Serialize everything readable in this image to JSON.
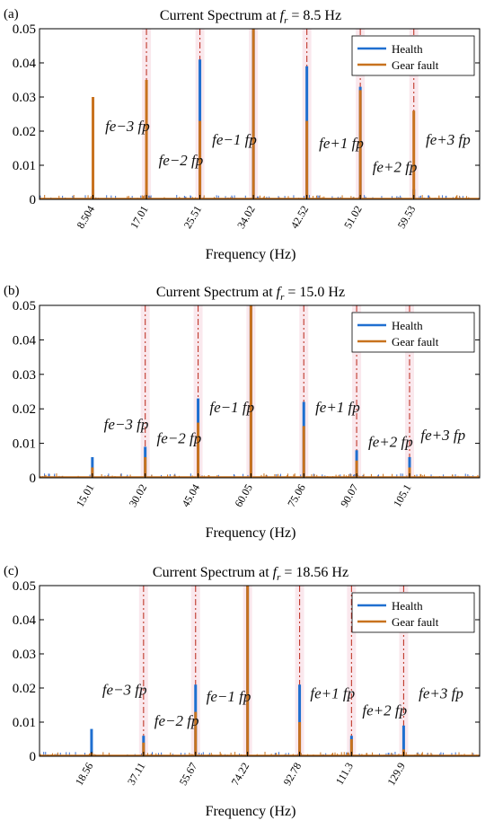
{
  "chart_data": [
    {
      "type": "line",
      "panel_label": "(a)",
      "title_prefix": "Current Spectrum at ",
      "title_var": "f",
      "title_sub": "r",
      "title_suffix": " = 8.5 Hz",
      "xlabel": "Frequency (Hz)",
      "xlim": [
        0,
        70
      ],
      "ylim": [
        0,
        0.05
      ],
      "yticks": [
        0,
        0.01,
        0.02,
        0.03,
        0.04,
        0.05
      ],
      "ytick_labels": [
        "0",
        "0.01",
        "0.02",
        "0.03",
        "0.04",
        "0.05"
      ],
      "xticks": [
        8.504,
        17.01,
        25.51,
        34.02,
        42.52,
        51.02,
        59.53
      ],
      "xtick_labels": [
        "8.504",
        "17.01",
        "25.51",
        "34.02",
        "42.52",
        "51.02",
        "59.53"
      ],
      "legend": {
        "position": "top-right",
        "entries": [
          "Health",
          "Gear fault"
        ]
      },
      "series": [
        {
          "name": "Health",
          "color": "#1f6fd0",
          "peaks": [
            [
              8.504,
              0.003
            ],
            [
              17.01,
              0.002
            ],
            [
              25.51,
              0.041
            ],
            [
              34.02,
              0.05
            ],
            [
              42.52,
              0.039
            ],
            [
              51.02,
              0.033
            ],
            [
              59.53,
              0.003
            ]
          ]
        },
        {
          "name": "Gear fault",
          "color": "#c8721e",
          "peaks": [
            [
              8.504,
              0.03
            ],
            [
              17.01,
              0.035
            ],
            [
              25.51,
              0.023
            ],
            [
              34.02,
              0.05
            ],
            [
              42.52,
              0.023
            ],
            [
              51.02,
              0.032
            ],
            [
              59.53,
              0.026
            ]
          ]
        }
      ],
      "fault_lines": [
        17.01,
        25.51,
        34.02,
        42.52,
        51.02,
        59.53
      ],
      "annotations": [
        {
          "text": "fe−3 fp",
          "x": 17.01,
          "y": 0.02
        },
        {
          "text": "fe−2 fp",
          "x": 25.51,
          "y": 0.01
        },
        {
          "text": "fe−1 fp",
          "x": 34.02,
          "y": 0.016
        },
        {
          "text": "fe+1 fp",
          "x": 51.02,
          "y": 0.015
        },
        {
          "text": "fe+2 fp",
          "x": 59.53,
          "y": 0.008
        },
        {
          "text": "fe+3 fp",
          "x": 68.0,
          "y": 0.016
        }
      ]
    },
    {
      "type": "line",
      "panel_label": "(b)",
      "title_prefix": "Current Spectrum at ",
      "title_var": "f",
      "title_sub": "r",
      "title_suffix": " = 15.0 Hz",
      "xlabel": "Frequency (Hz)",
      "xlim": [
        0,
        125
      ],
      "ylim": [
        0,
        0.05
      ],
      "yticks": [
        0,
        0.01,
        0.02,
        0.03,
        0.04,
        0.05
      ],
      "ytick_labels": [
        "0",
        "0.01",
        "0.02",
        "0.03",
        "0.04",
        "0.05"
      ],
      "xticks": [
        15.01,
        30.02,
        45.04,
        60.05,
        75.06,
        90.07,
        105.1
      ],
      "xtick_labels": [
        "15.01",
        "30.02",
        "45.04",
        "60.05",
        "75.06",
        "90.07",
        "105.1"
      ],
      "legend": {
        "position": "top-right",
        "entries": [
          "Health",
          "Gear fault"
        ]
      },
      "series": [
        {
          "name": "Health",
          "color": "#1f6fd0",
          "peaks": [
            [
              15.01,
              0.006
            ],
            [
              30.02,
              0.009
            ],
            [
              45.04,
              0.023
            ],
            [
              60.05,
              0.05
            ],
            [
              75.06,
              0.022
            ],
            [
              90.07,
              0.008
            ],
            [
              105.1,
              0.006
            ]
          ]
        },
        {
          "name": "Gear fault",
          "color": "#c8721e",
          "peaks": [
            [
              15.01,
              0.003
            ],
            [
              30.02,
              0.006
            ],
            [
              45.04,
              0.016
            ],
            [
              60.05,
              0.05
            ],
            [
              75.06,
              0.015
            ],
            [
              90.07,
              0.005
            ],
            [
              105.1,
              0.003
            ]
          ]
        }
      ],
      "fault_lines": [
        30.02,
        45.04,
        60.05,
        75.06,
        90.07,
        105.1
      ],
      "annotations": [
        {
          "text": "fe−3 fp",
          "x": 30.02,
          "y": 0.014
        },
        {
          "text": "fe−2 fp",
          "x": 45.04,
          "y": 0.01
        },
        {
          "text": "fe−1 fp",
          "x": 60.05,
          "y": 0.019
        },
        {
          "text": "fe+1 fp",
          "x": 90.07,
          "y": 0.019
        },
        {
          "text": "fe+2 fp",
          "x": 105.1,
          "y": 0.009
        },
        {
          "text": "fe+3 fp",
          "x": 120.0,
          "y": 0.011
        }
      ]
    },
    {
      "type": "line",
      "panel_label": "(c)",
      "title_prefix": "Current Spectrum at ",
      "title_var": "f",
      "title_sub": "r",
      "title_suffix": " = 18.56 Hz",
      "xlabel": "Frequency (Hz)",
      "xlim": [
        0,
        157
      ],
      "ylim": [
        0,
        0.05
      ],
      "yticks": [
        0,
        0.01,
        0.02,
        0.03,
        0.04,
        0.05
      ],
      "ytick_labels": [
        "0",
        "0.01",
        "0.02",
        "0.03",
        "0.04",
        "0.05"
      ],
      "xticks": [
        18.56,
        37.11,
        55.67,
        74.22,
        92.78,
        111.3,
        129.9
      ],
      "xtick_labels": [
        "18.56",
        "37.11",
        "55.67",
        "74.22",
        "92.78",
        "111.3",
        "129.9"
      ],
      "legend": {
        "position": "top-right",
        "entries": [
          "Health",
          "Gear fault"
        ]
      },
      "series": [
        {
          "name": "Health",
          "color": "#1f6fd0",
          "peaks": [
            [
              18.56,
              0.008
            ],
            [
              37.11,
              0.006
            ],
            [
              55.67,
              0.021
            ],
            [
              74.22,
              0.05
            ],
            [
              92.78,
              0.021
            ],
            [
              111.3,
              0.006
            ],
            [
              129.9,
              0.009
            ]
          ]
        },
        {
          "name": "Gear fault",
          "color": "#c8721e",
          "peaks": [
            [
              18.56,
              0.001
            ],
            [
              37.11,
              0.004
            ],
            [
              55.67,
              0.013
            ],
            [
              74.22,
              0.05
            ],
            [
              92.78,
              0.01
            ],
            [
              111.3,
              0.005
            ],
            [
              129.9,
              0.002
            ]
          ]
        }
      ],
      "fault_lines": [
        37.11,
        55.67,
        74.22,
        92.78,
        111.3,
        129.9
      ],
      "annotations": [
        {
          "text": "fe−3 fp",
          "x": 37.11,
          "y": 0.018
        },
        {
          "text": "fe−2 fp",
          "x": 55.67,
          "y": 0.009
        },
        {
          "text": "fe−1 fp",
          "x": 74.22,
          "y": 0.016
        },
        {
          "text": "fe+1 fp",
          "x": 111.3,
          "y": 0.017
        },
        {
          "text": "fe+2 fp",
          "x": 129.9,
          "y": 0.012
        },
        {
          "text": "fe+3 fp",
          "x": 150.0,
          "y": 0.017
        }
      ]
    }
  ]
}
